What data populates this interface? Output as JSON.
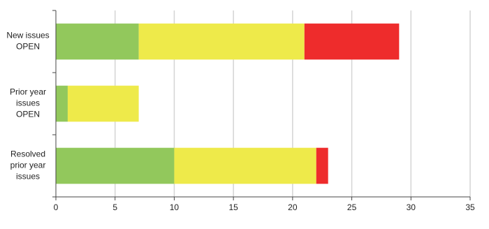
{
  "chart_data": {
    "type": "bar",
    "orientation": "horizontal",
    "stacked": true,
    "categories": [
      [
        "New issues",
        "OPEN"
      ],
      [
        "Prior year",
        "issues",
        "OPEN"
      ],
      [
        "Resolved",
        "prior year",
        "issues"
      ]
    ],
    "series": [
      {
        "color": "#92c85c",
        "values": [
          7,
          1,
          10
        ]
      },
      {
        "color": "#eeea4a",
        "values": [
          14,
          6,
          12
        ]
      },
      {
        "color": "#ee2c2c",
        "values": [
          8,
          0,
          1
        ]
      }
    ],
    "xlim": [
      0,
      35
    ],
    "xticks": [
      0,
      5,
      10,
      15,
      20,
      25,
      30,
      35
    ],
    "grid": true
  }
}
